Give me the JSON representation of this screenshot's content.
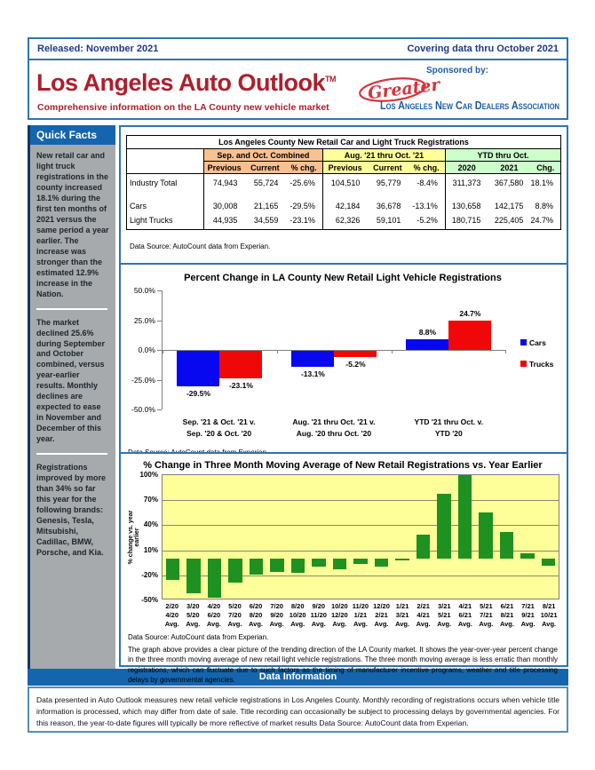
{
  "page": {
    "header_left": "Released: November 2021",
    "header_right": "Covering data thru October 2021",
    "title": "Los Angeles Auto Outlook",
    "trademark": "TM",
    "subtitle": "Comprehensive information on the LA County new vehicle market",
    "sponsored_by": "Sponsored by:",
    "logo": {
      "script": "Greater",
      "text": "Los Angeles New Car Dealers Association"
    },
    "colors": {
      "border_blue": "#2E75B6",
      "accent_blue": "#1565AE",
      "navy_text": "#1A3A8F",
      "dark_red": "#AC1F2D",
      "logo_red": "#D6343C",
      "logo_blue": "#1B5EA8",
      "sidebar_gray": "#A6AAAC"
    }
  },
  "sidebar": {
    "heading": "Quick Facts",
    "paragraphs": [
      "New retail car and light truck registrations in the county increased 18.1% during the first ten months of 2021 versus the same period a year earlier. The increase was stronger than the estimated 12.9% increase in the Nation.",
      "The market declined 25.6% during September and October combined, versus year-earlier results. Monthly declines are expected to ease in November and December of this year.",
      "Registrations improved by more than 34% so far this year for the following brands: Genesis, Tesla, Mitsubishi, Cadillac, BMW, Porsche, and Kia."
    ]
  },
  "table": {
    "title": "Los Angeles County New Retail Car and Light Truck Registrations",
    "groups": [
      {
        "label": "Sep. and Oct. Combined",
        "color": "#FAC090",
        "cols": [
          "Previous",
          "Current",
          "% chg."
        ]
      },
      {
        "label": "Aug. '21 thru Oct. '21",
        "color": "#FFFF99",
        "cols": [
          "Previous",
          "Current",
          "% chg."
        ]
      },
      {
        "label": "YTD thru Oct.",
        "color": "#CCFFCC",
        "cols": [
          "2020",
          "2021",
          "Chg."
        ]
      }
    ],
    "rows": [
      {
        "label": "Industry Total",
        "values": [
          "74,943",
          "55,724",
          "-25.6%",
          "104,510",
          "95,779",
          "-8.4%",
          "311,373",
          "367,580",
          "18.1%"
        ]
      },
      {
        "label": "Cars",
        "values": [
          "30,008",
          "21,165",
          "-29.5%",
          "42,184",
          "36,678",
          "-13.1%",
          "130,658",
          "142,175",
          "8.8%"
        ]
      },
      {
        "label": "Light Trucks",
        "values": [
          "44,935",
          "34,559",
          "-23.1%",
          "62,326",
          "59,101",
          "-5.2%",
          "180,715",
          "225,405",
          "24.7%"
        ]
      }
    ],
    "source": "Data Source: AutoCount data from Experian."
  },
  "chart_data": [
    {
      "id": "percent-change-bar-chart",
      "type": "bar",
      "title": "Percent Change in LA County New Retail Light Vehicle Registrations",
      "xlabel": "",
      "ylabel": "",
      "ylim": [
        -50,
        50
      ],
      "grid": false,
      "legend_position": "right",
      "y_ticks": [
        {
          "label": "50.0%",
          "value": 50
        },
        {
          "label": "25.0%",
          "value": 25
        },
        {
          "label": "0.0%",
          "value": 0
        },
        {
          "label": "-25.0%",
          "value": -25
        },
        {
          "label": "-50.0%",
          "value": -50
        }
      ],
      "categories": [
        [
          "Sep. '21 & Oct. '21 v.",
          "Sep. '20 & Oct. '20"
        ],
        [
          "Aug. '21 thru Oct. '21 v.",
          "Aug. '20 thru Oct. '20"
        ],
        [
          "YTD '21 thru Oct. v.",
          "YTD '20"
        ]
      ],
      "series": [
        {
          "name": "Cars",
          "color": "#0808F0",
          "values": [
            -29.5,
            -13.1,
            8.8
          ]
        },
        {
          "name": "Trucks",
          "color": "#F00808",
          "values": [
            -23.1,
            -5.2,
            24.7
          ]
        }
      ],
      "source": "Data Source: AutoCount data from Experian."
    },
    {
      "id": "moving-average-bar-chart",
      "type": "bar",
      "title": "% Change in Three Month Moving Average of New Retail Registrations vs. Year Earlier",
      "xlabel": "",
      "ylabel": "% change vs. year earlier",
      "ylim": [
        -50,
        100
      ],
      "grid": true,
      "legend_position": "none",
      "plot_bg": "#FFFF99",
      "bar_color": "#1E9121",
      "y_ticks": [
        {
          "label": "100%",
          "value": 100
        },
        {
          "label": "70%",
          "value": 70
        },
        {
          "label": "40%",
          "value": 40
        },
        {
          "label": "10%",
          "value": 10
        },
        {
          "label": "-20%",
          "value": -20
        },
        {
          "label": "-50%",
          "value": -50
        }
      ],
      "gridlines": [
        70,
        40,
        10,
        -20
      ],
      "categories": [
        [
          "2/20",
          "4/20",
          "Avg."
        ],
        [
          "3/20",
          "5/20",
          "Avg."
        ],
        [
          "4/20",
          "6/20",
          "Avg."
        ],
        [
          "5/20",
          "7/20",
          "Avg."
        ],
        [
          "6/20",
          "8/20",
          "Avg."
        ],
        [
          "7/20",
          "9/20",
          "Avg."
        ],
        [
          "8/20",
          "10/20",
          "Avg."
        ],
        [
          "9/20",
          "11/20",
          "Avg."
        ],
        [
          "10/20",
          "12/20",
          "Avg."
        ],
        [
          "11/20",
          "1/21",
          "Avg."
        ],
        [
          "12/20",
          "2/21",
          "Avg."
        ],
        [
          "1/21",
          "3/21",
          "Avg."
        ],
        [
          "2/21",
          "4/21",
          "Avg."
        ],
        [
          "3/21",
          "5/21",
          "Avg."
        ],
        [
          "4/21",
          "6/21",
          "Avg."
        ],
        [
          "5/21",
          "7/21",
          "Avg."
        ],
        [
          "6/21",
          "8/21",
          "Avg."
        ],
        [
          "7/21",
          "9/21",
          "Avg."
        ],
        [
          "8/21",
          "10/21",
          "Avg."
        ]
      ],
      "values": [
        -25,
        -41,
        -47,
        -29,
        -19,
        -16,
        -17,
        -10,
        -13,
        -6,
        -10,
        -2,
        29,
        78,
        100,
        55,
        32,
        6,
        -9
      ],
      "source": "Data Source: AutoCount data from Experian.",
      "note": "The graph above provides a clear picture of the trending direction of the LA County market. It shows the year-over-year percent change in the three month moving average of new retail light vehicle registrations. The three month moving average is less erratic than monthly registrations, which can fluctuate due to such factors as the timing of manufacturer incentive programs, weather and title processing delays by governmental agencies."
    }
  ],
  "data_information": {
    "heading": "Data Information",
    "body": "Data presented in Auto Outlook measures new retail vehicle registrations in Los Angeles County. Monthly recording of registrations occurs when vehicle title information is processed, which may differ from date of sale. Title recording can occasionally be subject to processing delays by governmental agencies. For this reason, the year-to-date figures will typically be more reflective of market results Data Source: AutoCount data from Experian."
  }
}
